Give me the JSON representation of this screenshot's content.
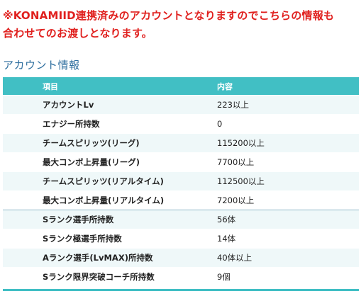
{
  "notice": {
    "line1": "※KONAMIID連携済みのアカウントとなりますのでこちらの情報も",
    "line2": "合わせてのお渡しとなります。"
  },
  "section_title": "アカウント情報",
  "table": {
    "headers": [
      "項目",
      "内容"
    ],
    "rows": [
      {
        "item": "アカウントLv",
        "value": "223以上"
      },
      {
        "item": "エナジー所持数",
        "value": "0"
      },
      {
        "item": "チームスピリッツ(リーグ)",
        "value": "115200以上"
      },
      {
        "item": "最大コンボ上昇量(リーグ)",
        "value": "7700以上"
      },
      {
        "item": "チームスピリッツ(リアルタイム)",
        "value": "112500以上"
      },
      {
        "item": "最大コンボ上昇量(リアルタイム)",
        "value": "7200以上"
      },
      {
        "item": "Sランク選手所持数",
        "value": "56体"
      },
      {
        "item": "Sランク極選手所持数",
        "value": "14体"
      },
      {
        "item": "Aランク選手(LvMAX)所持数",
        "value": "40体以上"
      },
      {
        "item": "Sランク限界突破コーチ所持数",
        "value": "9個"
      }
    ]
  },
  "colors": {
    "notice": "#e0201e",
    "title": "#2f6f9f",
    "header_bg": "#41bfc4",
    "row_alt": "#eff8f9"
  }
}
